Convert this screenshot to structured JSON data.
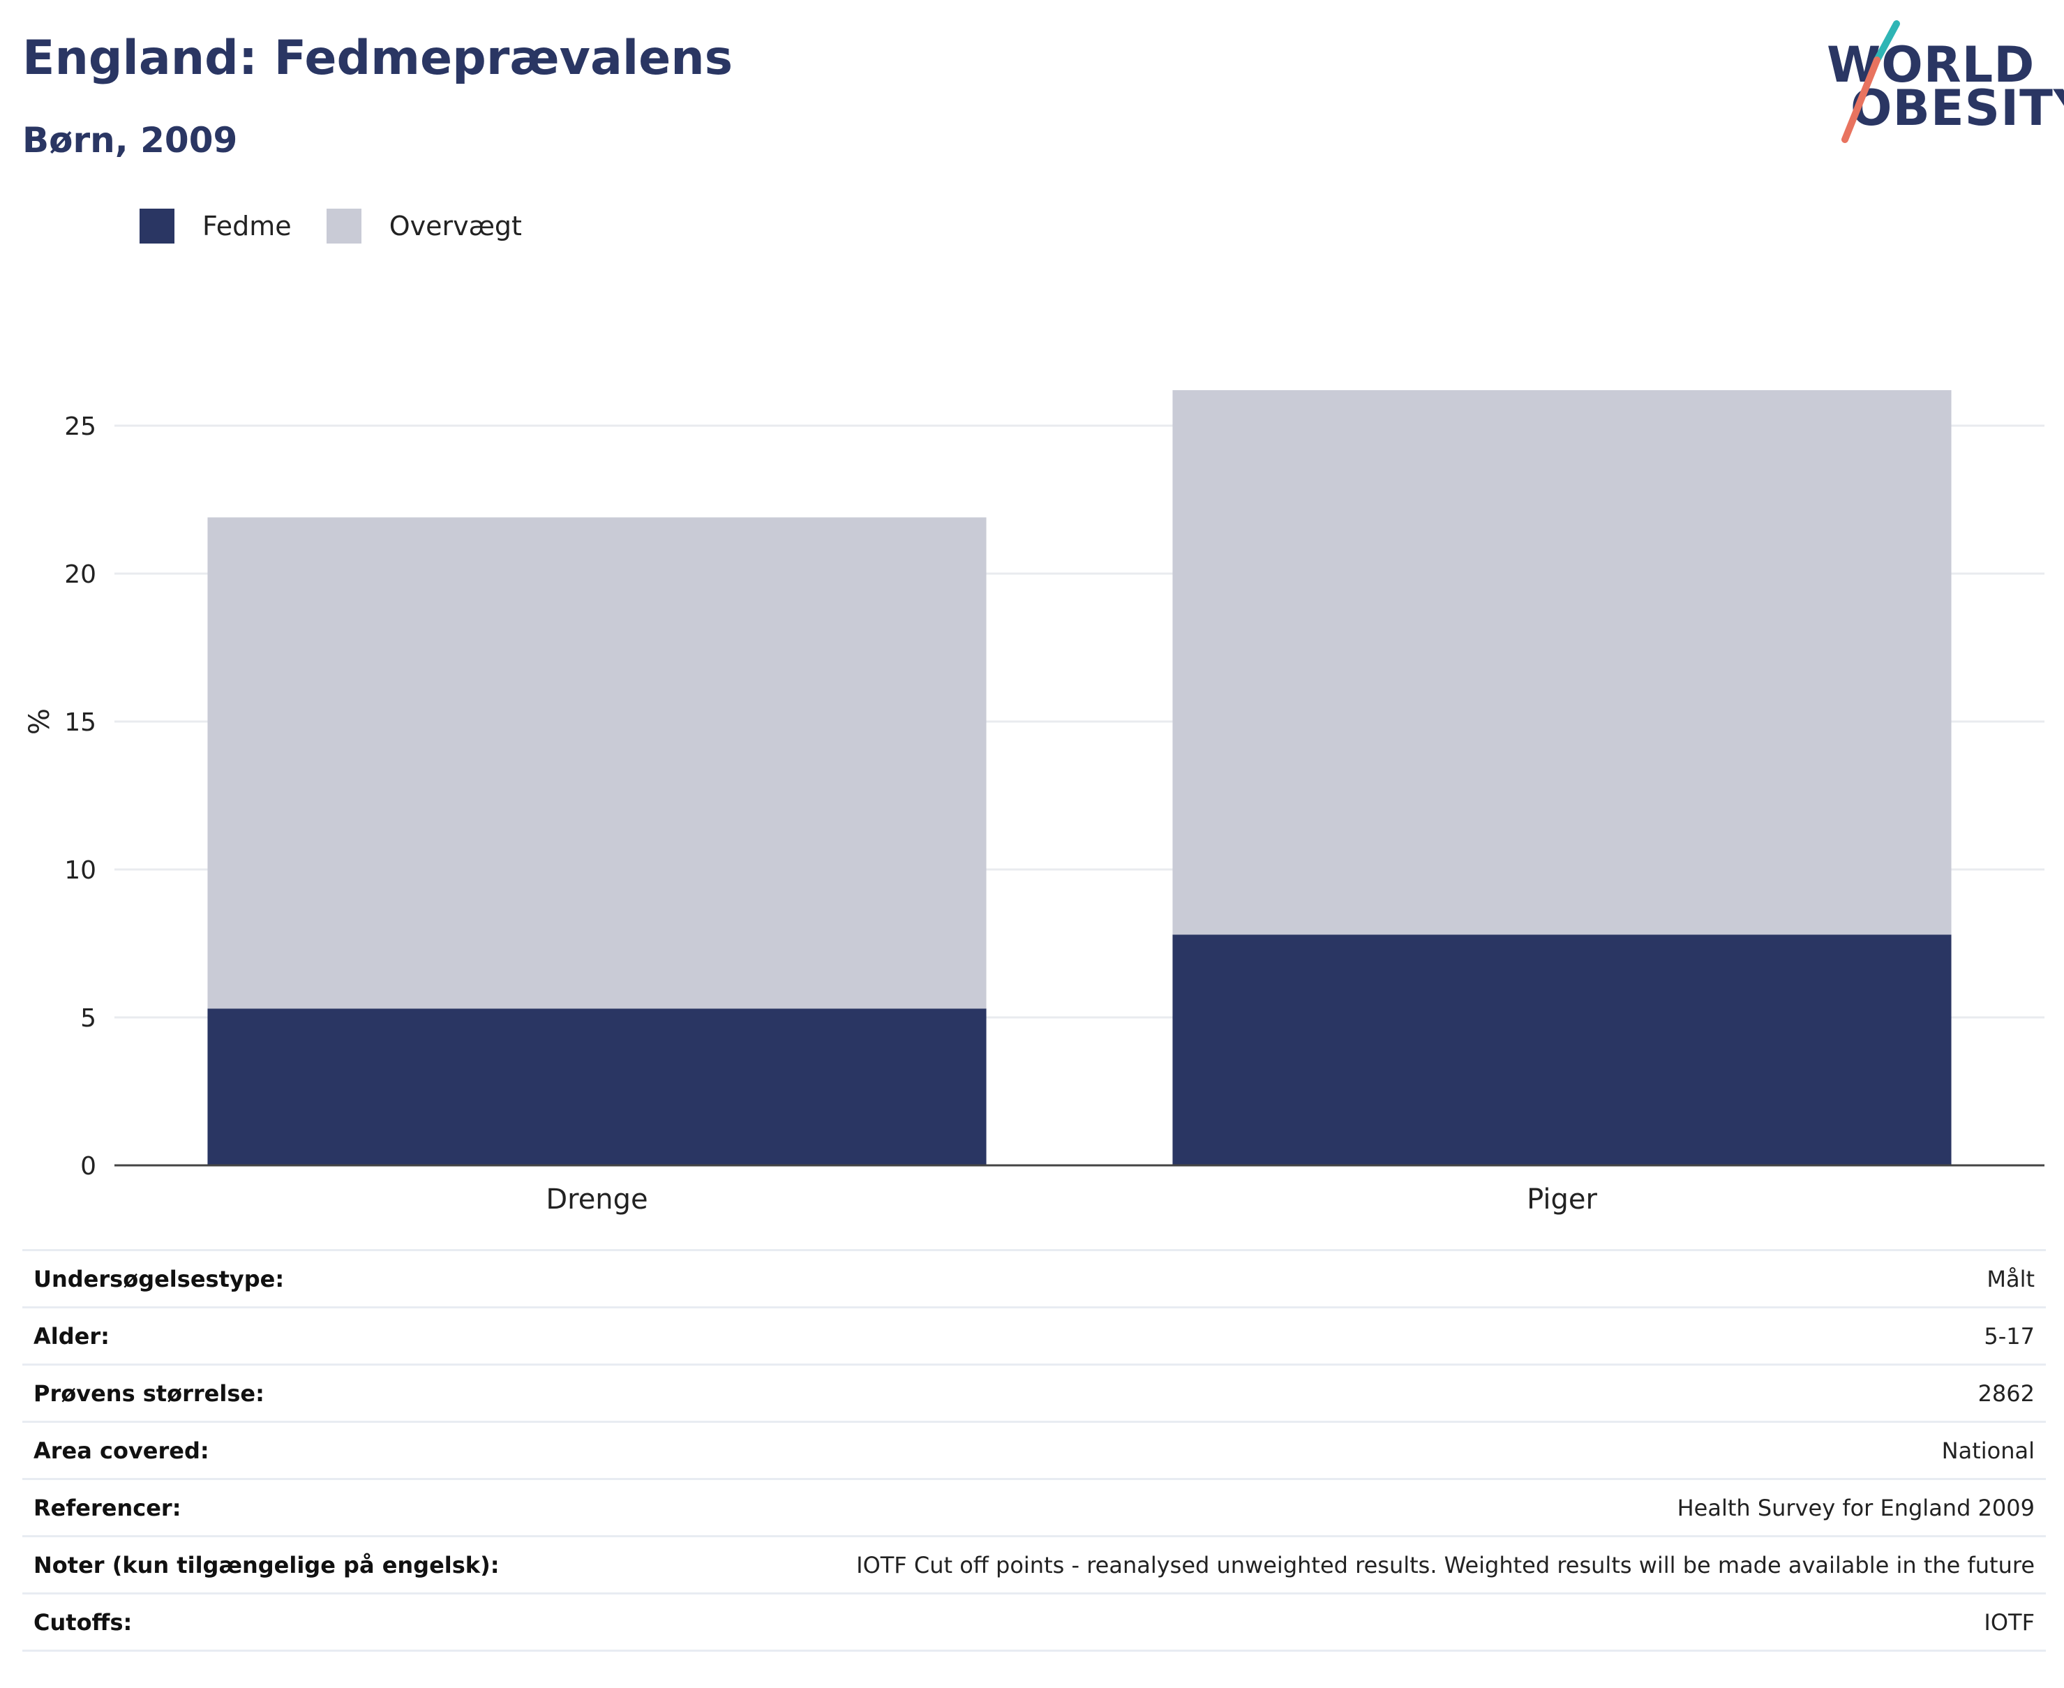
{
  "header": {
    "title": "England: Fedmeprævalens",
    "subtitle": "Børn, 2009"
  },
  "logo": {
    "line1": "WORLD",
    "line2": "OBESITY",
    "accent_teal": "#2fb5b5",
    "accent_coral": "#e8735f"
  },
  "colors": {
    "fedme": "#2a3663",
    "overvaegt": "#c9cbd6",
    "grid": "#e9ebef",
    "axis": "#444444"
  },
  "chart_data": {
    "type": "bar",
    "stacked": true,
    "categories": [
      "Drenge",
      "Piger"
    ],
    "series": [
      {
        "name": "Fedme",
        "values": [
          5.3,
          7.8
        ]
      },
      {
        "name": "Overvægt",
        "values": [
          16.6,
          18.4
        ]
      }
    ],
    "ylabel": "%",
    "ylim": [
      0,
      27
    ],
    "yticks": [
      0,
      5,
      10,
      15,
      20,
      25
    ],
    "legend_position": "top-left",
    "grid": true
  },
  "meta": [
    {
      "label": "Undersøgelsestype:",
      "value": "Målt"
    },
    {
      "label": "Alder:",
      "value": "5-17"
    },
    {
      "label": "Prøvens størrelse:",
      "value": "2862"
    },
    {
      "label": "Area covered:",
      "value": "National"
    },
    {
      "label": "Referencer:",
      "value": "Health Survey for England 2009"
    },
    {
      "label": "Noter (kun tilgængelige på engelsk):",
      "value": "IOTF Cut off points - reanalysed unweighted results. Weighted results will be made available in the future"
    },
    {
      "label": "Cutoffs:",
      "value": "IOTF"
    }
  ]
}
